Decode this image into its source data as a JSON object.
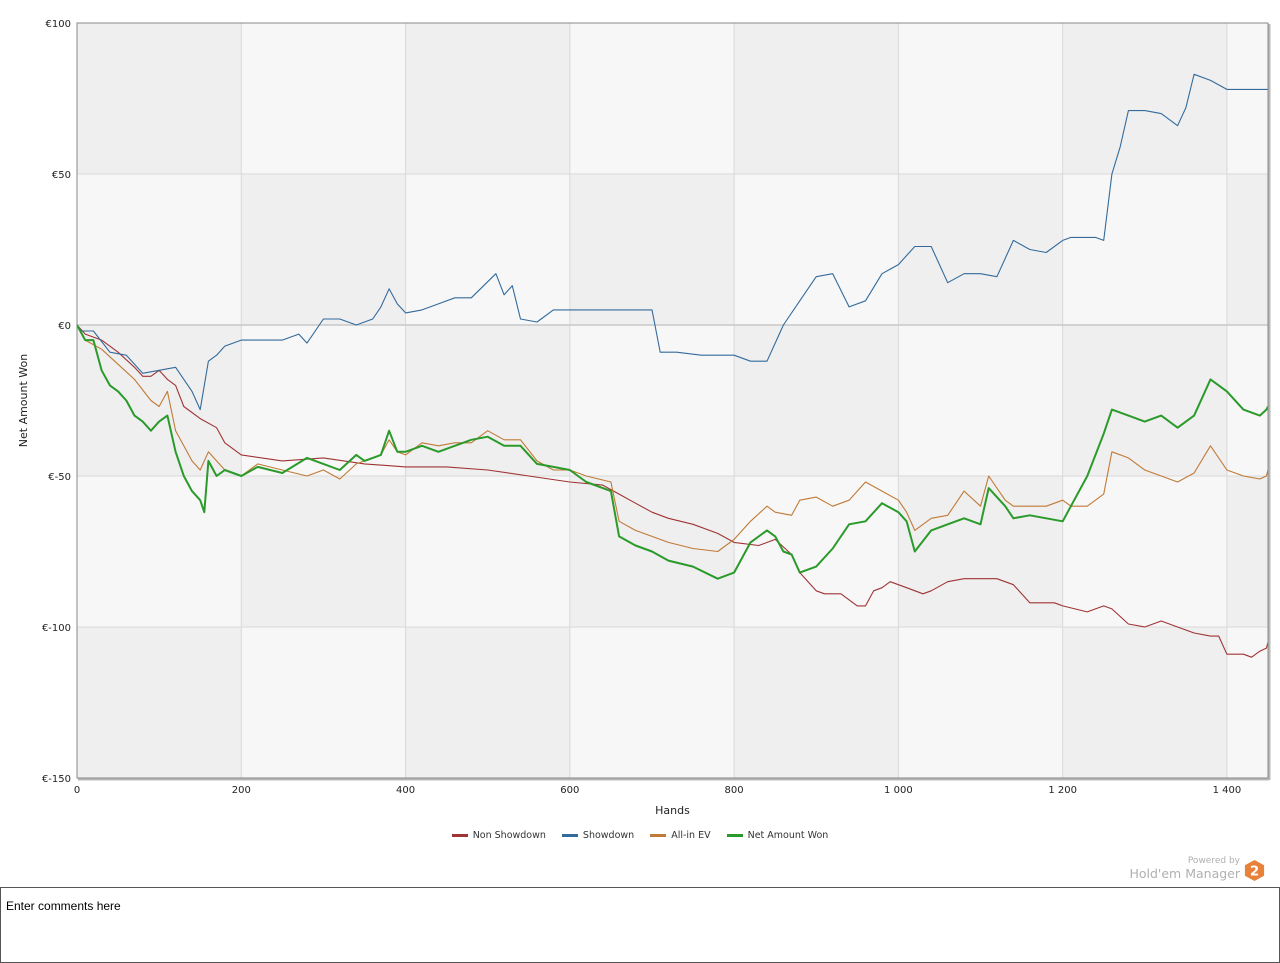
{
  "chart_data": {
    "type": "line",
    "xlabel": "Hands",
    "ylabel": "Net Amount Won",
    "xlim": [
      0,
      1450
    ],
    "ylim": [
      -150,
      100
    ],
    "x_ticks": [
      0,
      200,
      400,
      600,
      800,
      1000,
      1200,
      1400
    ],
    "x_tick_labels": [
      "0",
      "200",
      "400",
      "600",
      "800",
      "1 000",
      "1 200",
      "1 400"
    ],
    "y_ticks": [
      100,
      50,
      0,
      -50,
      -100,
      -150
    ],
    "y_tick_labels": [
      "€100",
      "€50",
      "€0",
      "€-50",
      "€-100",
      "€-150"
    ],
    "grid": true,
    "legend_position": "bottom",
    "series": [
      {
        "name": "Non Showdown",
        "color": "#a03434",
        "x": [
          0,
          10,
          30,
          50,
          70,
          80,
          90,
          100,
          110,
          120,
          130,
          150,
          170,
          180,
          200,
          250,
          300,
          350,
          400,
          450,
          500,
          550,
          600,
          640,
          660,
          680,
          700,
          720,
          750,
          780,
          800,
          830,
          850,
          870,
          880,
          900,
          910,
          930,
          950,
          960,
          970,
          980,
          990,
          1000,
          1010,
          1030,
          1040,
          1060,
          1080,
          1100,
          1120,
          1140,
          1160,
          1190,
          1200,
          1230,
          1250,
          1260,
          1280,
          1300,
          1320,
          1340,
          1360,
          1380,
          1390,
          1400,
          1410,
          1420,
          1430,
          1440,
          1448,
          1450
        ],
        "y": [
          0,
          -3,
          -5,
          -9,
          -14,
          -17,
          -17,
          -15,
          -18,
          -20,
          -27,
          -31,
          -34,
          -39,
          -43,
          -45,
          -44,
          -46,
          -47,
          -47,
          -48,
          -50,
          -52,
          -53,
          -56,
          -59,
          -62,
          -64,
          -66,
          -69,
          -72,
          -73,
          -71,
          -76,
          -82,
          -88,
          -89,
          -89,
          -93,
          -93,
          -88,
          -87,
          -85,
          -86,
          -87,
          -89,
          -88,
          -85,
          -84,
          -84,
          -84,
          -86,
          -92,
          -92,
          -93,
          -95,
          -93,
          -94,
          -99,
          -100,
          -98,
          -100,
          -102,
          -103,
          -103,
          -109,
          -109,
          -109,
          -110,
          -108,
          -107,
          -105
        ]
      },
      {
        "name": "Showdown",
        "color": "#336b9c",
        "x": [
          0,
          5,
          10,
          20,
          40,
          60,
          80,
          100,
          120,
          140,
          150,
          160,
          170,
          180,
          200,
          220,
          250,
          270,
          280,
          300,
          320,
          340,
          360,
          370,
          380,
          390,
          400,
          420,
          440,
          460,
          480,
          510,
          520,
          530,
          540,
          560,
          580,
          600,
          640,
          700,
          710,
          730,
          760,
          780,
          800,
          820,
          840,
          860,
          880,
          900,
          920,
          940,
          960,
          980,
          1000,
          1020,
          1040,
          1060,
          1080,
          1100,
          1120,
          1140,
          1160,
          1180,
          1200,
          1210,
          1240,
          1250,
          1260,
          1270,
          1280,
          1300,
          1320,
          1340,
          1350,
          1360,
          1380,
          1400,
          1430,
          1450
        ],
        "y": [
          0,
          -2,
          -2,
          -2,
          -9,
          -10,
          -16,
          -15,
          -14,
          -22,
          -28,
          -12,
          -10,
          -7,
          -5,
          -5,
          -5,
          -3,
          -6,
          2,
          2,
          0,
          2,
          6,
          12,
          7,
          4,
          5,
          7,
          9,
          9,
          17,
          10,
          13,
          2,
          1,
          5,
          5,
          5,
          5,
          -9,
          -9,
          -10,
          -10,
          -10,
          -12,
          -12,
          0,
          8,
          16,
          17,
          6,
          8,
          17,
          20,
          26,
          26,
          14,
          17,
          17,
          16,
          28,
          25,
          24,
          28,
          29,
          29,
          28,
          50,
          59,
          71,
          71,
          70,
          66,
          72,
          83,
          81,
          78,
          78,
          78
        ]
      },
      {
        "name": "All-in EV",
        "color": "#c07a37",
        "x": [
          0,
          10,
          30,
          50,
          70,
          90,
          100,
          110,
          120,
          130,
          140,
          150,
          160,
          170,
          180,
          200,
          220,
          250,
          280,
          300,
          320,
          340,
          350,
          370,
          380,
          390,
          400,
          420,
          440,
          460,
          480,
          500,
          520,
          540,
          560,
          580,
          600,
          620,
          650,
          660,
          680,
          700,
          720,
          750,
          780,
          800,
          820,
          840,
          850,
          870,
          880,
          900,
          920,
          940,
          960,
          980,
          1000,
          1010,
          1020,
          1040,
          1060,
          1080,
          1100,
          1110,
          1130,
          1140,
          1160,
          1180,
          1200,
          1210,
          1230,
          1250,
          1260,
          1280,
          1300,
          1320,
          1340,
          1360,
          1380,
          1400,
          1420,
          1440,
          1448,
          1450
        ],
        "y": [
          0,
          -5,
          -8,
          -13,
          -18,
          -25,
          -27,
          -22,
          -35,
          -40,
          -45,
          -48,
          -42,
          -45,
          -48,
          -50,
          -46,
          -48,
          -50,
          -48,
          -51,
          -46,
          -45,
          -43,
          -38,
          -42,
          -43,
          -39,
          -40,
          -39,
          -39,
          -35,
          -38,
          -38,
          -45,
          -48,
          -48,
          -50,
          -52,
          -65,
          -68,
          -70,
          -72,
          -74,
          -75,
          -71,
          -65,
          -60,
          -62,
          -63,
          -58,
          -57,
          -60,
          -58,
          -52,
          -55,
          -58,
          -62,
          -68,
          -64,
          -63,
          -55,
          -60,
          -50,
          -58,
          -60,
          -60,
          -60,
          -58,
          -60,
          -60,
          -56,
          -42,
          -44,
          -48,
          -50,
          -52,
          -49,
          -40,
          -48,
          -50,
          -51,
          -50,
          -48
        ]
      },
      {
        "name": "Net Amount Won",
        "color": "#2a9a2a",
        "x": [
          0,
          10,
          20,
          30,
          40,
          50,
          60,
          70,
          80,
          90,
          100,
          110,
          120,
          130,
          140,
          150,
          155,
          160,
          170,
          180,
          200,
          220,
          250,
          280,
          300,
          320,
          340,
          350,
          370,
          380,
          390,
          400,
          420,
          440,
          460,
          480,
          500,
          520,
          540,
          560,
          580,
          600,
          620,
          650,
          660,
          680,
          700,
          720,
          750,
          780,
          800,
          820,
          840,
          850,
          860,
          870,
          880,
          900,
          920,
          940,
          960,
          980,
          1000,
          1010,
          1020,
          1040,
          1060,
          1080,
          1100,
          1110,
          1130,
          1140,
          1160,
          1180,
          1200,
          1210,
          1230,
          1250,
          1260,
          1280,
          1300,
          1320,
          1340,
          1360,
          1380,
          1400,
          1420,
          1440,
          1448,
          1450
        ],
        "y": [
          0,
          -5,
          -5,
          -15,
          -20,
          -22,
          -25,
          -30,
          -32,
          -35,
          -32,
          -30,
          -42,
          -50,
          -55,
          -58,
          -62,
          -45,
          -50,
          -48,
          -50,
          -47,
          -49,
          -44,
          -46,
          -48,
          -43,
          -45,
          -43,
          -35,
          -42,
          -42,
          -40,
          -42,
          -40,
          -38,
          -37,
          -40,
          -40,
          -46,
          -47,
          -48,
          -52,
          -55,
          -70,
          -73,
          -75,
          -78,
          -80,
          -84,
          -82,
          -72,
          -68,
          -70,
          -75,
          -76,
          -82,
          -80,
          -74,
          -66,
          -65,
          -59,
          -62,
          -65,
          -75,
          -68,
          -66,
          -64,
          -66,
          -54,
          -60,
          -64,
          -63,
          -64,
          -65,
          -60,
          -50,
          -36,
          -28,
          -30,
          -32,
          -30,
          -34,
          -30,
          -18,
          -22,
          -28,
          -30,
          -28,
          -27
        ]
      }
    ]
  },
  "powered_by": {
    "line1": "Powered by",
    "line2": "Hold'em Manager",
    "badge": "2",
    "badge_color": "#e8813a"
  },
  "comments": {
    "placeholder": "Enter comments here"
  }
}
